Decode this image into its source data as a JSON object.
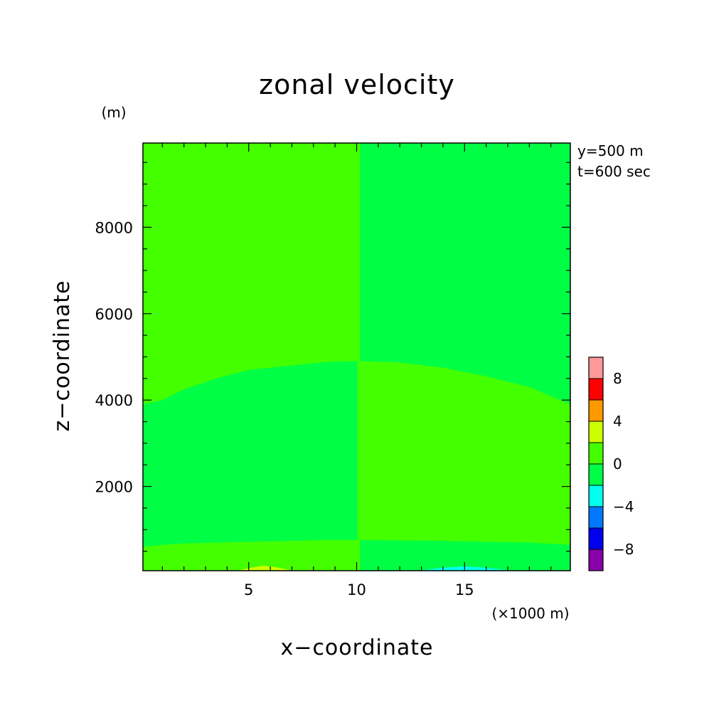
{
  "chart_data": {
    "type": "heatmap",
    "title": "zonal velocity",
    "xlabel": "x−coordinate",
    "ylabel": "z−coordinate",
    "x_unit": "(×1000 m)",
    "y_unit": "(m)",
    "xlim": [
      0.1,
      19.9
    ],
    "ylim": [
      50,
      9950
    ],
    "x_ticks": [
      5,
      10,
      15
    ],
    "x_tick_labels": [
      "5",
      "10",
      "15"
    ],
    "y_ticks": [
      2000,
      4000,
      6000,
      8000
    ],
    "y_tick_labels": [
      "2000",
      "4000",
      "6000",
      "8000"
    ],
    "annotations": [
      "y=500 m",
      "t=600 sec"
    ],
    "background_band": {
      "range": [
        0,
        2
      ],
      "color": "#44ff00"
    },
    "regions": [
      {
        "range": [
          -2,
          0
        ],
        "color": "#00ff44",
        "x": [
          0.1,
          1.0,
          2.0,
          3.5,
          5.0,
          7.0,
          8.5,
          9.5,
          10.05
        ],
        "upper_z": [
          3900,
          4000,
          4250,
          4500,
          4700,
          4800,
          4880,
          4900,
          4900
        ],
        "lower_z": [
          600,
          650,
          680,
          700,
          720,
          740,
          760,
          760,
          760
        ]
      },
      {
        "range": [
          -2,
          0
        ],
        "color": "#00ff44",
        "x": [
          10.15,
          10.5,
          12.0,
          14.0,
          16.0,
          18.0,
          19.9
        ],
        "upper_z": [
          9950,
          9950,
          9950,
          9950,
          9950,
          9950,
          9950
        ],
        "lower_z": [
          4900,
          4900,
          4870,
          4750,
          4550,
          4300,
          3900
        ]
      },
      {
        "range": [
          -2,
          0
        ],
        "color": "#00ff44",
        "x": [
          10.15,
          10.5,
          12.0,
          14.0,
          16.0,
          18.0,
          19.9
        ],
        "upper_z": [
          760,
          760,
          750,
          740,
          720,
          700,
          650
        ],
        "lower_z": [
          50,
          50,
          50,
          50,
          50,
          50,
          50
        ]
      },
      {
        "range": [
          2,
          4
        ],
        "color": "#ccff00",
        "x": [
          4.5,
          5.0,
          5.7,
          6.5,
          7.0
        ],
        "upper_z": [
          50,
          110,
          170,
          110,
          50
        ],
        "lower_z": [
          50,
          50,
          50,
          50,
          50
        ]
      },
      {
        "range": [
          -4,
          -2
        ],
        "color": "#00ffee",
        "x": [
          12.8,
          14.0,
          15.0,
          16.0,
          17.2
        ],
        "upper_z": [
          50,
          120,
          150,
          120,
          50
        ],
        "lower_z": [
          50,
          50,
          50,
          50,
          50
        ]
      }
    ],
    "colorbar": {
      "levels": [
        -10,
        -8,
        -6,
        -4,
        -2,
        0,
        2,
        4,
        6,
        8,
        10
      ],
      "colors": [
        "#8800aa",
        "#0000ee",
        "#0077ff",
        "#00ffee",
        "#00ff44",
        "#44ff00",
        "#ccff00",
        "#ff9900",
        "#ff0000",
        "#ff9999"
      ],
      "labels": [
        "−8",
        "−4",
        "0",
        "4",
        "8"
      ],
      "label_values": [
        -8,
        -4,
        0,
        4,
        8
      ]
    }
  }
}
